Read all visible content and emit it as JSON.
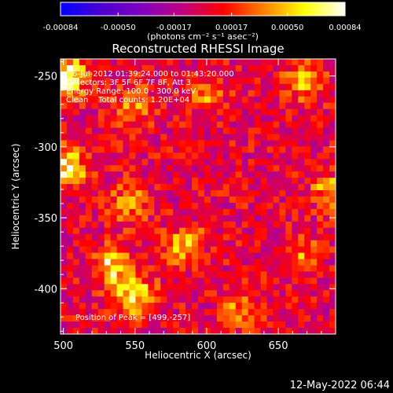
{
  "chart_data": {
    "type": "heatmap",
    "title": "Reconstructed RHESSI Image",
    "xlabel": "Heliocentric X (arcsec)",
    "ylabel": "Heliocentric Y (arcsec)",
    "xlim": [
      498,
      690
    ],
    "ylim": [
      -432,
      -238
    ],
    "x_ticks": [
      500,
      550,
      600,
      650
    ],
    "y_ticks": [
      -250,
      -300,
      -350,
      -400
    ],
    "colorbar": {
      "ticks": [
        "-0.00084",
        "-0.00050",
        "-0.00017",
        "0.00017",
        "0.00050",
        "0.00084"
      ],
      "tick_values": [
        -0.00084,
        -0.0005,
        -0.00017,
        0.00017,
        0.0005,
        0.00084
      ],
      "range": [
        -0.00084,
        0.00084
      ],
      "unit_label": "(photons cm⁻² s⁻¹ asec⁻²)",
      "colors": [
        "#0000ff",
        "#4b00d2",
        "#8000c0",
        "#c00080",
        "#ff0000",
        "#ff8000",
        "#ffff00",
        "#ffffff"
      ]
    },
    "annotations": [
      "6-Jul-2012 01:39:24.000 to 01:43:20.000",
      "Detectors: 3F 5F 6F 7F 8F, Att 3",
      "Energy Range: 100.0 - 300.0 keV",
      "Clean    Total counts: 1.20E+04"
    ],
    "peak_label": "Position of Peak = [499,-257]",
    "peak": {
      "x": 499,
      "y": -257
    },
    "bright_regions": [
      {
        "x": 503,
        "y": -252,
        "value": 0.00084
      },
      {
        "x": 503,
        "y": -315,
        "value": 0.0006
      },
      {
        "x": 535,
        "y": -385,
        "value": 0.0007
      },
      {
        "x": 550,
        "y": -405,
        "value": 0.0006
      },
      {
        "x": 585,
        "y": -370,
        "value": 0.0005
      },
      {
        "x": 545,
        "y": -340,
        "value": 0.0004
      },
      {
        "x": 550,
        "y": -270,
        "value": 0.0004
      },
      {
        "x": 668,
        "y": -255,
        "value": 0.00045
      },
      {
        "x": 685,
        "y": -330,
        "value": 0.0004
      },
      {
        "x": 600,
        "y": -265,
        "value": 0.0003
      },
      {
        "x": 625,
        "y": -415,
        "value": 0.00035
      },
      {
        "x": 665,
        "y": -375,
        "value": 0.0003
      }
    ]
  },
  "footer": {
    "date": "12-May-2022 06:44"
  }
}
